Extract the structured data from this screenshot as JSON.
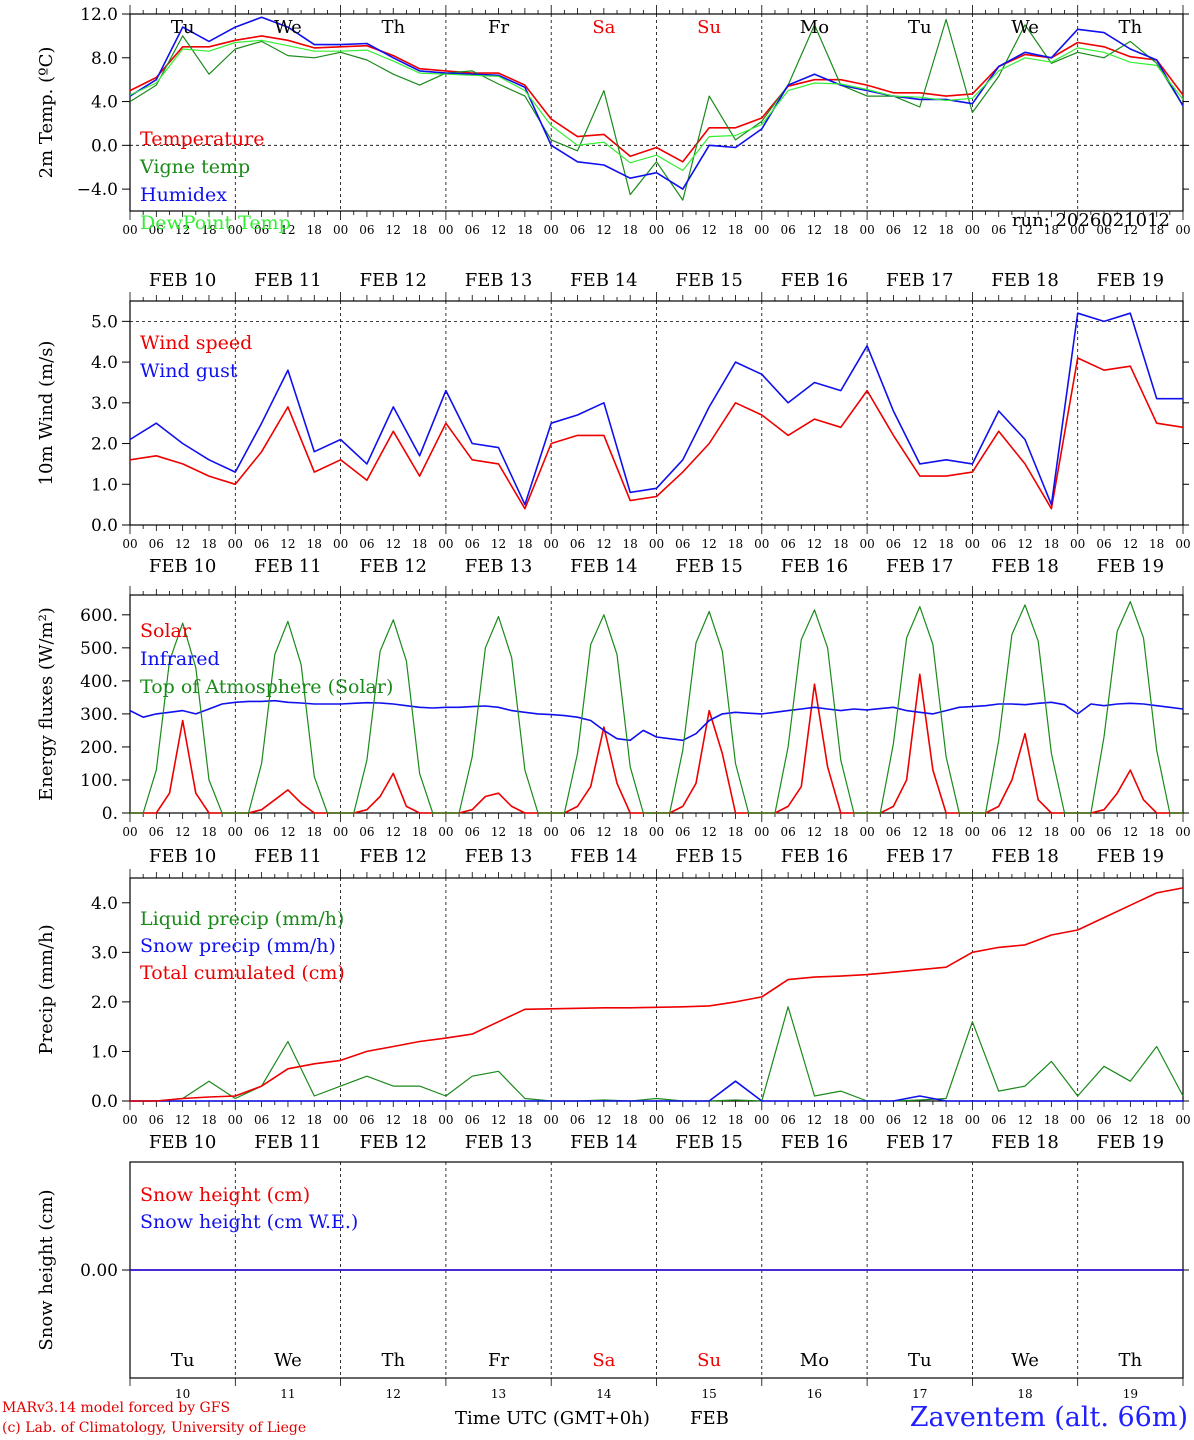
{
  "days": [
    "10",
    "11",
    "12",
    "13",
    "14",
    "15",
    "16",
    "17",
    "18",
    "19"
  ],
  "day_names": [
    "Tu",
    "We",
    "Th",
    "Fr",
    "Sa",
    "Su",
    "Mo",
    "Tu",
    "We",
    "Th"
  ],
  "weekend_indices": [
    4,
    5
  ],
  "date_labels": [
    "FEB 10",
    "FEB 11",
    "FEB 12",
    "FEB 13",
    "FEB 14",
    "FEB 15",
    "FEB 16",
    "FEB 17",
    "FEB 18",
    "FEB 19"
  ],
  "hour_ticks": [
    "00",
    "06",
    "12",
    "18"
  ],
  "x_axis_title": "Time UTC (GMT+0h)",
  "month": "FEB",
  "footer": {
    "credit_line1": "MARv3.14 model forced by GFS",
    "credit_line2": "(c) Lab. of Climatology, University of Liege",
    "station": "Zaventem (alt. 66m)"
  },
  "colors": {
    "red": "#ee0000",
    "green": "#1a8a1a",
    "blue": "#1010ee",
    "lightgreen": "#33ee33"
  },
  "chart_data": [
    {
      "type": "line",
      "title": "",
      "ylabel": "2m Temp. (ºC)",
      "ylim": [
        -6,
        12
      ],
      "yticks": [
        -4.0,
        0.0,
        4.0,
        8.0,
        12.0
      ],
      "ytick_labels": [
        "−4.0",
        "0.0",
        "4.0",
        "8.0",
        "12.0"
      ],
      "dashed_y": [
        0,
        12
      ],
      "run_label": "run: 2026021012",
      "x_hours": [
        0,
        6,
        12,
        18,
        24,
        30,
        36,
        42,
        48,
        54,
        60,
        66,
        72,
        78,
        84,
        90,
        96,
        102,
        108,
        114,
        120,
        126,
        132,
        138,
        144,
        150,
        156,
        162,
        168,
        174,
        180,
        186,
        192,
        198,
        204,
        210,
        216,
        222,
        228,
        234,
        240
      ],
      "series": [
        {
          "name": "Temperature",
          "color": "#ee0000",
          "values": [
            5.0,
            6.2,
            9.0,
            9.0,
            9.6,
            10.0,
            9.6,
            8.9,
            9.0,
            9.1,
            8.2,
            7.0,
            6.8,
            6.6,
            6.6,
            5.5,
            2.4,
            0.8,
            1.0,
            -1.0,
            -0.2,
            -1.5,
            1.6,
            1.6,
            2.5,
            5.4,
            6.0,
            6.0,
            5.5,
            4.8,
            4.8,
            4.5,
            4.7,
            7.2,
            8.3,
            8.0,
            9.4,
            9.0,
            8.1,
            7.8,
            4.6
          ]
        },
        {
          "name": "Vigne temp",
          "color": "#1a8a1a",
          "values": [
            4.0,
            5.5,
            10.0,
            6.5,
            8.8,
            9.5,
            8.2,
            8.0,
            8.5,
            7.8,
            6.5,
            5.5,
            6.6,
            6.8,
            5.6,
            4.5,
            0.5,
            -0.5,
            5.0,
            -4.5,
            -1.5,
            -5.0,
            4.5,
            0.5,
            2.2,
            5.5,
            11.0,
            5.5,
            4.5,
            4.5,
            3.5,
            11.5,
            3.0,
            6.3,
            11.0,
            7.5,
            8.5,
            8.0,
            9.5,
            7.5,
            3.6
          ]
        },
        {
          "name": "Humidex",
          "color": "#1010ee",
          "values": [
            4.5,
            6.0,
            10.8,
            9.5,
            10.8,
            11.7,
            10.8,
            9.2,
            9.2,
            9.3,
            8.0,
            6.8,
            6.6,
            6.5,
            6.4,
            5.3,
            0.0,
            -1.5,
            -1.8,
            -3.0,
            -2.5,
            -4.0,
            0.0,
            -0.2,
            1.5,
            5.5,
            6.5,
            5.5,
            5.0,
            4.5,
            4.2,
            4.2,
            3.8,
            7.2,
            8.5,
            8.0,
            10.6,
            10.3,
            8.8,
            7.8,
            3.6
          ]
        },
        {
          "name": "DewPoint Temp",
          "color": "#33ee33",
          "values": [
            4.6,
            5.7,
            8.8,
            8.6,
            9.4,
            9.6,
            9.1,
            8.6,
            8.6,
            8.7,
            7.7,
            6.6,
            6.5,
            6.4,
            6.3,
            5.0,
            1.8,
            0.0,
            0.3,
            -1.6,
            -0.9,
            -2.3,
            0.8,
            0.9,
            1.9,
            5.0,
            5.7,
            5.6,
            5.1,
            4.5,
            4.4,
            4.1,
            4.3,
            6.8,
            8.0,
            7.6,
            8.9,
            8.5,
            7.6,
            7.3,
            4.2
          ]
        }
      ]
    },
    {
      "type": "line",
      "title": "",
      "ylabel": "10m Wind (m/s)",
      "ylim": [
        0,
        5.5
      ],
      "yticks": [
        0.0,
        1.0,
        2.0,
        3.0,
        4.0,
        5.0
      ],
      "ytick_labels": [
        "0.0",
        "1.0",
        "2.0",
        "3.0",
        "4.0",
        "5.0"
      ],
      "dashed_y": [
        5.0
      ],
      "x_hours": [
        0,
        6,
        12,
        18,
        24,
        30,
        36,
        42,
        48,
        54,
        60,
        66,
        72,
        78,
        84,
        90,
        96,
        102,
        108,
        114,
        120,
        126,
        132,
        138,
        144,
        150,
        156,
        162,
        168,
        174,
        180,
        186,
        192,
        198,
        204,
        210,
        216,
        222,
        228,
        234,
        240
      ],
      "series": [
        {
          "name": "Wind speed",
          "color": "#ee0000",
          "values": [
            1.6,
            1.7,
            1.5,
            1.2,
            1.0,
            1.8,
            2.9,
            1.3,
            1.6,
            1.1,
            2.3,
            1.2,
            2.5,
            1.6,
            1.5,
            0.4,
            2.0,
            2.2,
            2.2,
            0.6,
            0.7,
            1.3,
            2.0,
            3.0,
            2.7,
            2.2,
            2.6,
            2.4,
            3.3,
            2.2,
            1.2,
            1.2,
            1.3,
            2.3,
            1.5,
            0.4,
            4.1,
            3.8,
            3.9,
            2.5,
            2.4
          ]
        },
        {
          "name": "Wind gust",
          "color": "#1010ee",
          "values": [
            2.1,
            2.5,
            2.0,
            1.6,
            1.3,
            2.5,
            3.8,
            1.8,
            2.1,
            1.5,
            2.9,
            1.7,
            3.3,
            2.0,
            1.9,
            0.5,
            2.5,
            2.7,
            3.0,
            0.8,
            0.9,
            1.6,
            2.9,
            4.0,
            3.7,
            3.0,
            3.5,
            3.3,
            4.4,
            2.8,
            1.5,
            1.6,
            1.5,
            2.8,
            2.1,
            0.5,
            5.2,
            5.0,
            5.2,
            3.1,
            3.1
          ]
        }
      ]
    },
    {
      "type": "line",
      "title": "",
      "ylabel": "Energy fluxes (W/m²)",
      "ylim": [
        0,
        660
      ],
      "yticks": [
        0,
        100,
        200,
        300,
        400,
        500,
        600
      ],
      "ytick_labels": [
        "0.",
        "100.",
        "200.",
        "300.",
        "400.",
        "500.",
        "600."
      ],
      "dashed_y": [],
      "x_hours": [
        0,
        3,
        6,
        9,
        12,
        15,
        18,
        21,
        24,
        27,
        30,
        33,
        36,
        39,
        42,
        45,
        48,
        51,
        54,
        57,
        60,
        63,
        66,
        69,
        72,
        75,
        78,
        81,
        84,
        87,
        90,
        93,
        96,
        99,
        102,
        105,
        108,
        111,
        114,
        117,
        120,
        123,
        126,
        129,
        132,
        135,
        138,
        141,
        144,
        147,
        150,
        153,
        156,
        159,
        162,
        165,
        168,
        171,
        174,
        177,
        180,
        183,
        186,
        189,
        192,
        195,
        198,
        201,
        204,
        207,
        210,
        213,
        216,
        219,
        222,
        225,
        228,
        231,
        234,
        237,
        240
      ],
      "series": [
        {
          "name": "Solar",
          "color": "#ee0000",
          "values": [
            0,
            0,
            0,
            60,
            280,
            60,
            0,
            0,
            0,
            0,
            10,
            40,
            70,
            30,
            0,
            0,
            0,
            0,
            10,
            50,
            120,
            20,
            0,
            0,
            0,
            0,
            10,
            50,
            60,
            20,
            0,
            0,
            0,
            0,
            20,
            80,
            260,
            90,
            0,
            0,
            0,
            0,
            20,
            90,
            310,
            180,
            0,
            0,
            0,
            0,
            20,
            80,
            390,
            140,
            0,
            0,
            0,
            0,
            20,
            100,
            420,
            130,
            0,
            0,
            0,
            0,
            20,
            100,
            240,
            40,
            0,
            0,
            0,
            0,
            10,
            60,
            130,
            40,
            0,
            0,
            0
          ]
        },
        {
          "name": "Infrared",
          "color": "#1010ee",
          "values": [
            310,
            290,
            300,
            305,
            310,
            300,
            315,
            330,
            335,
            338,
            338,
            340,
            335,
            333,
            330,
            330,
            330,
            332,
            334,
            333,
            330,
            325,
            320,
            318,
            320,
            320,
            322,
            324,
            320,
            310,
            305,
            300,
            298,
            295,
            290,
            280,
            250,
            225,
            220,
            250,
            230,
            225,
            220,
            240,
            280,
            300,
            305,
            302,
            300,
            305,
            310,
            315,
            320,
            315,
            310,
            315,
            312,
            316,
            320,
            310,
            305,
            300,
            310,
            320,
            322,
            325,
            330,
            330,
            328,
            332,
            335,
            328,
            300,
            330,
            325,
            330,
            332,
            330,
            325,
            320,
            315
          ]
        },
        {
          "name": "Top of Atmosphere (Solar)",
          "color": "#1a8a1a",
          "values": [
            0,
            0,
            130,
            460,
            575,
            440,
            100,
            0,
            0,
            0,
            150,
            480,
            580,
            450,
            110,
            0,
            0,
            0,
            160,
            490,
            585,
            460,
            120,
            0,
            0,
            0,
            170,
            500,
            595,
            470,
            130,
            0,
            0,
            0,
            180,
            510,
            600,
            480,
            140,
            0,
            0,
            0,
            190,
            515,
            610,
            490,
            150,
            0,
            0,
            0,
            200,
            525,
            615,
            500,
            160,
            0,
            0,
            0,
            210,
            530,
            625,
            510,
            170,
            0,
            0,
            0,
            220,
            540,
            630,
            520,
            180,
            0,
            0,
            0,
            230,
            550,
            640,
            530,
            190,
            0,
            0
          ]
        }
      ]
    },
    {
      "type": "line",
      "title": "",
      "ylabel": "Precip (mm/h)",
      "ylim": [
        0,
        4.5
      ],
      "yticks": [
        0.0,
        1.0,
        2.0,
        3.0,
        4.0
      ],
      "ytick_labels": [
        "0.0",
        "1.0",
        "2.0",
        "3.0",
        "4.0"
      ],
      "dashed_y": [],
      "x_hours": [
        0,
        6,
        12,
        18,
        24,
        30,
        36,
        42,
        48,
        54,
        60,
        66,
        72,
        78,
        84,
        90,
        96,
        102,
        108,
        114,
        120,
        126,
        132,
        138,
        144,
        150,
        156,
        162,
        168,
        174,
        180,
        186,
        192,
        198,
        204,
        210,
        216,
        222,
        228,
        234,
        240
      ],
      "series": [
        {
          "name": "Liquid precip (mm/h)",
          "color": "#1a8a1a",
          "values": [
            0,
            0,
            0.05,
            0.4,
            0.05,
            0.3,
            1.2,
            0.1,
            0.3,
            0.5,
            0.3,
            0.3,
            0.1,
            0.5,
            0.6,
            0.05,
            0,
            0,
            0.02,
            0,
            0.05,
            0,
            0,
            0.02,
            0,
            1.9,
            0.1,
            0.2,
            0,
            0,
            0.02,
            0.05,
            1.6,
            0.2,
            0.3,
            0.8,
            0.1,
            0.7,
            0.4,
            1.1,
            0.1
          ]
        },
        {
          "name": "Snow precip (mm/h)",
          "color": "#1010ee",
          "values": [
            0,
            0,
            0,
            0,
            0,
            0,
            0,
            0,
            0,
            0,
            0,
            0,
            0,
            0,
            0,
            0,
            0,
            0,
            0,
            0,
            0,
            0,
            0,
            0.4,
            0,
            0,
            0,
            0,
            0,
            0,
            0.1,
            0,
            0,
            0,
            0,
            0,
            0,
            0,
            0,
            0,
            0
          ]
        },
        {
          "name": "Total cumulated (cm)",
          "color": "#ee0000",
          "values": [
            0,
            0,
            0.05,
            0.08,
            0.1,
            0.3,
            0.65,
            0.75,
            0.82,
            1.0,
            1.1,
            1.2,
            1.27,
            1.35,
            1.6,
            1.85,
            1.86,
            1.87,
            1.88,
            1.88,
            1.89,
            1.9,
            1.92,
            2.0,
            2.1,
            2.45,
            2.5,
            2.52,
            2.55,
            2.6,
            2.65,
            2.7,
            3.0,
            3.1,
            3.15,
            3.35,
            3.45,
            3.7,
            3.95,
            4.2,
            4.3
          ]
        }
      ]
    },
    {
      "type": "line",
      "title": "",
      "ylabel": "Snow height (cm)",
      "ylim": [
        -1,
        1
      ],
      "yticks": [
        0.0
      ],
      "ytick_labels": [
        "0.00"
      ],
      "dashed_y": [],
      "x_hours": [
        0,
        240
      ],
      "series": [
        {
          "name": "Snow height (cm)",
          "color": "#ee0000",
          "values": [
            0,
            0
          ]
        },
        {
          "name": "Snow height (cm W.E.)",
          "color": "#1010ee",
          "values": [
            0,
            0
          ]
        }
      ]
    }
  ]
}
